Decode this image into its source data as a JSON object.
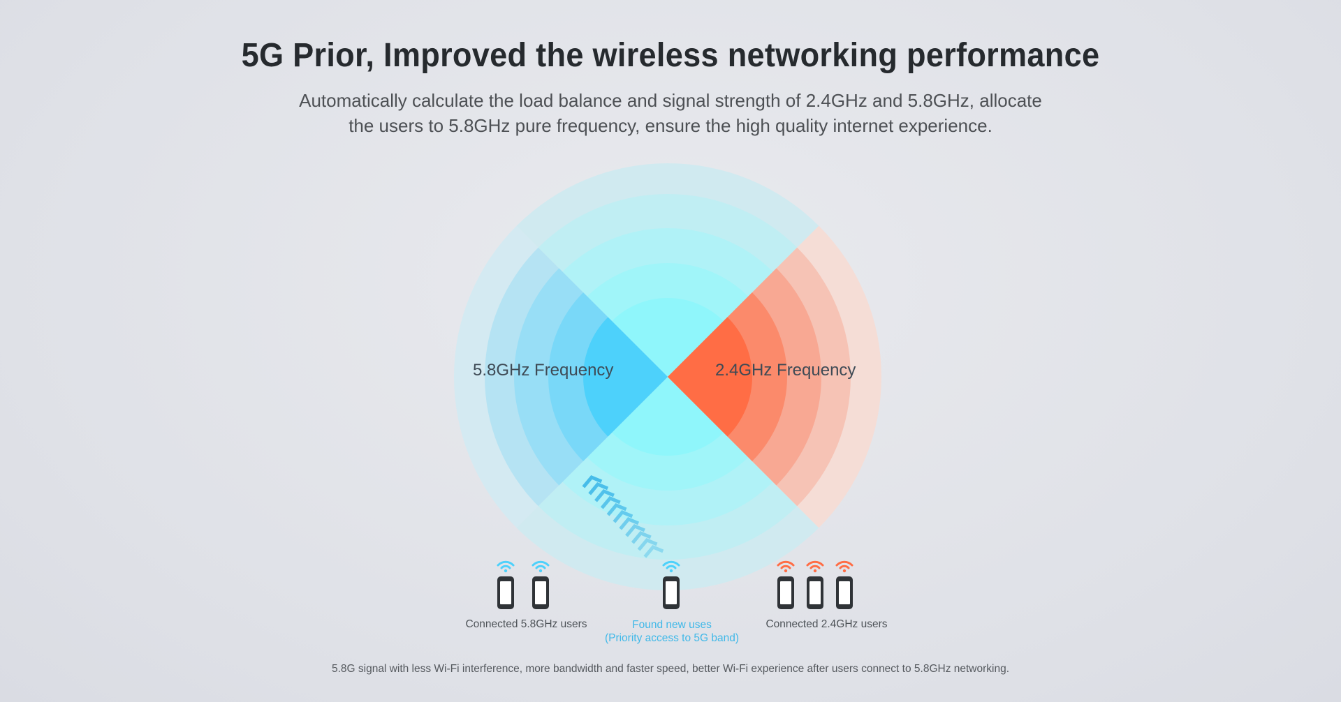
{
  "header": {
    "title": "5G Prior, Improved the wireless networking performance",
    "subtitle_line1": "Automatically calculate the load balance and signal strength of 2.4GHz and 5.8GHz, allocate",
    "subtitle_line2": "the users to 5.8GHz pure frequency, ensure the high quality internet experience."
  },
  "diagram": {
    "label_58": "5.8GHz Frequency",
    "label_24": "2.4GHz Frequency",
    "users_58_label": "Connected 5.8GHz users",
    "users_new_label_line1": "Found new uses",
    "users_new_label_line2": "(Priority access to 5G band)",
    "users_24_label": "Connected 2.4GHz users",
    "users_58_count": 2,
    "users_new_count": 1,
    "users_24_count": 3,
    "colors": {
      "band_58": "#4dd1fb",
      "band_24": "#ff6d45",
      "center": "#8ff6fb",
      "new_user": "#3fb8e8",
      "phone": "#2f3337"
    }
  },
  "footer": {
    "note": "5.8G signal with less Wi-Fi interference, more bandwidth and faster speed,  better Wi-Fi experience after users connect to 5.8GHz networking."
  }
}
